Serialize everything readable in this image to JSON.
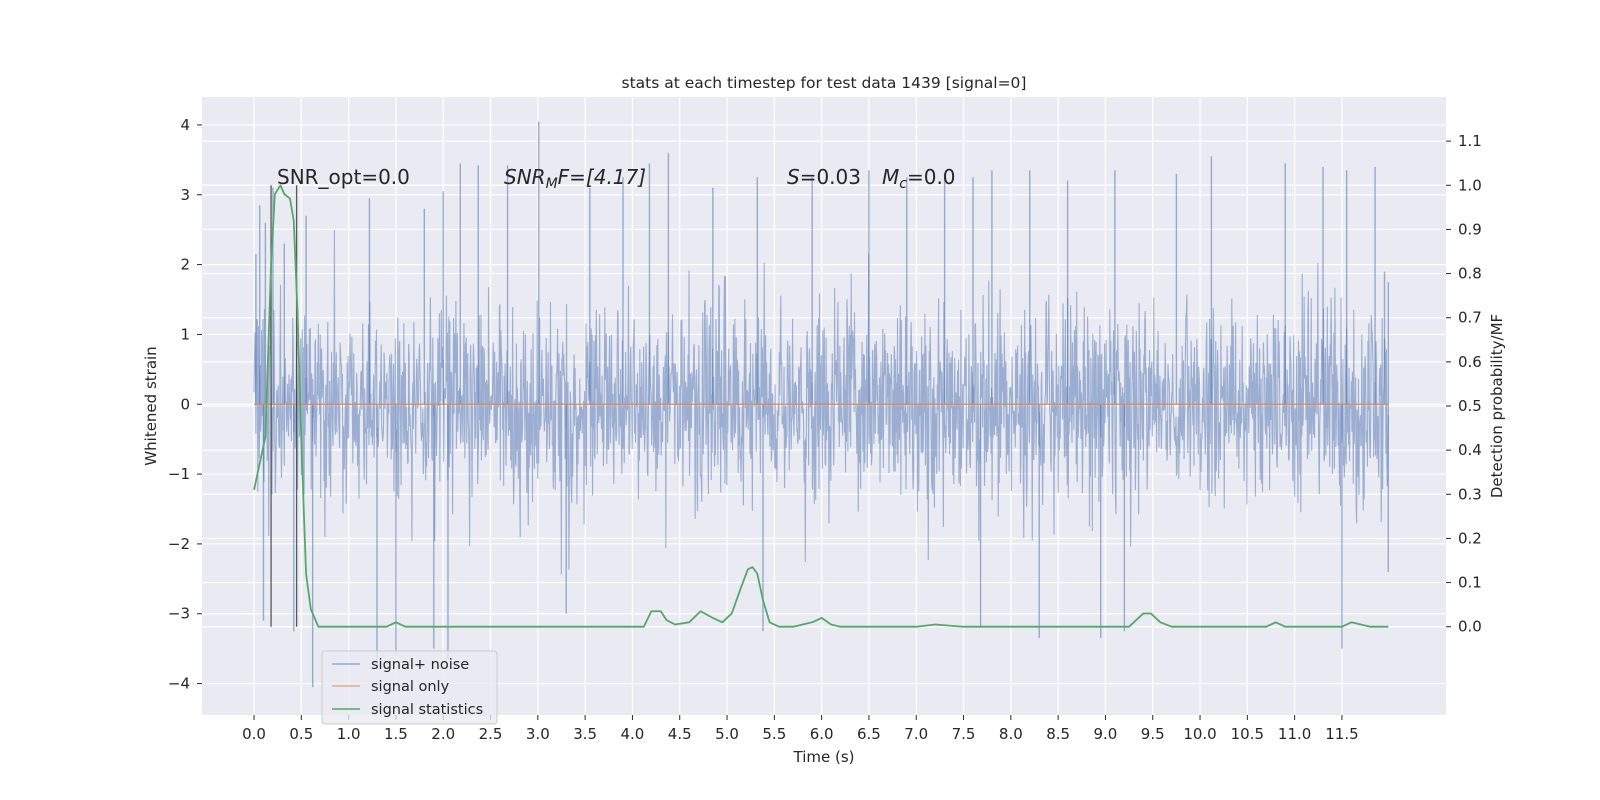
{
  "chart_data": {
    "type": "line",
    "title": "stats at each timestep for test data 1439 [signal=0]",
    "xlabel": "Time (s)",
    "ylabel": "Whitened strain",
    "y2label": "Detection probability/MF",
    "xlim": [
      -0.55,
      12.6
    ],
    "ylim": [
      -4.45,
      4.4
    ],
    "y2lim": [
      -0.2,
      1.2
    ],
    "x_ticks": [
      0.0,
      0.5,
      1.0,
      1.5,
      2.0,
      2.5,
      3.0,
      3.5,
      4.0,
      4.5,
      5.0,
      5.5,
      6.0,
      6.5,
      7.0,
      7.5,
      8.0,
      8.5,
      9.0,
      9.5,
      10.0,
      10.5,
      11.0,
      11.5
    ],
    "x_tick_labels": [
      "0.0",
      "0.5",
      "1.0",
      "1.5",
      "2.0",
      "2.5",
      "3.0",
      "3.5",
      "4.0",
      "4.5",
      "5.0",
      "5.5",
      "6.0",
      "6.5",
      "7.0",
      "7.5",
      "8.0",
      "8.5",
      "9.0",
      "9.5",
      "10.0",
      "10.5",
      "11.0",
      "11.5"
    ],
    "y_ticks": [
      -4,
      -3,
      -2,
      -1,
      0,
      1,
      2,
      3,
      4
    ],
    "y_tick_labels": [
      "−4",
      "−3",
      "−2",
      "−1",
      "0",
      "1",
      "2",
      "3",
      "4"
    ],
    "y2_ticks": [
      0.0,
      0.1,
      0.2,
      0.3,
      0.4,
      0.5,
      0.6,
      0.7,
      0.8,
      0.9,
      1.0,
      1.1
    ],
    "y2_tick_labels": [
      "0.0",
      "0.1",
      "0.2",
      "0.3",
      "0.4",
      "0.5",
      "0.6",
      "0.7",
      "0.8",
      "0.9",
      "1.0",
      "1.1"
    ],
    "grid": true,
    "legend_position": "lower-left",
    "legend": [
      {
        "label": "signal+ noise",
        "color": "#4c72b0"
      },
      {
        "label": "signal only",
        "color": "#dd8452"
      },
      {
        "label": "signal statistics",
        "color": "#55a868"
      }
    ],
    "annotations": {
      "snr_opt": "SNR_opt=0.0",
      "snr_mf_prefix": "SNR",
      "snr_mf_sub": "M",
      "snr_mf_suffix": "F=[4.17]",
      "s_prefix": "S",
      "s_value": "=0.03",
      "mc_prefix": "M",
      "mc_sub": "c",
      "mc_value": "=0.0"
    },
    "series": [
      {
        "name": "signal+ noise",
        "color": "#4c72b0",
        "x_range": [
          0.0,
          11.99
        ],
        "description_stats": {
          "typical_abs_max": 2.0,
          "peak_max": 4.05,
          "peak_min": -4.1
        },
        "spikes_high": [
          [
            0.02,
            2.15
          ],
          [
            0.06,
            2.85
          ],
          [
            0.12,
            2.6
          ],
          [
            0.2,
            3.1
          ],
          [
            0.32,
            2.3
          ],
          [
            0.55,
            2.7
          ],
          [
            1.22,
            2.95
          ],
          [
            1.8,
            2.8
          ],
          [
            2.0,
            3.05
          ],
          [
            2.18,
            3.45
          ],
          [
            2.37,
            3.42
          ],
          [
            2.68,
            3.42
          ],
          [
            3.01,
            4.05
          ],
          [
            3.55,
            3.1
          ],
          [
            3.9,
            3.25
          ],
          [
            4.18,
            3.45
          ],
          [
            4.38,
            3.6
          ],
          [
            4.85,
            3.1
          ],
          [
            5.32,
            3.25
          ],
          [
            5.9,
            3.25
          ],
          [
            6.5,
            3.35
          ],
          [
            6.9,
            3.25
          ],
          [
            7.3,
            3.3
          ],
          [
            7.6,
            3.25
          ],
          [
            7.8,
            3.35
          ],
          [
            8.2,
            3.35
          ],
          [
            8.6,
            3.2
          ],
          [
            9.1,
            3.35
          ],
          [
            9.75,
            3.3
          ],
          [
            10.12,
            3.55
          ],
          [
            10.9,
            3.45
          ],
          [
            11.3,
            3.4
          ],
          [
            11.55,
            3.35
          ],
          [
            11.85,
            3.4
          ],
          [
            11.95,
            1.9
          ],
          [
            11.99,
            1.75
          ]
        ],
        "spikes_low": [
          [
            0.1,
            -3.1
          ],
          [
            0.42,
            -3.25
          ],
          [
            0.62,
            -4.05
          ],
          [
            1.3,
            -3.75
          ],
          [
            1.5,
            -3.6
          ],
          [
            1.9,
            -3.5
          ],
          [
            2.05,
            -3.65
          ],
          [
            3.3,
            -3.0
          ],
          [
            5.38,
            -3.25
          ],
          [
            7.68,
            -3.2
          ],
          [
            8.3,
            -3.35
          ],
          [
            8.95,
            -3.35
          ],
          [
            9.2,
            -3.25
          ],
          [
            11.5,
            -3.5
          ],
          [
            11.99,
            -2.4
          ]
        ]
      },
      {
        "name": "signal only",
        "color": "#dd8452",
        "x": [
          0.0,
          11.99
        ],
        "y": [
          0.0,
          0.0
        ]
      },
      {
        "name": "signal statistics",
        "axis": "right",
        "color": "#55a868",
        "x": [
          0.0,
          0.12,
          0.18,
          0.22,
          0.28,
          0.32,
          0.38,
          0.42,
          0.46,
          0.5,
          0.55,
          0.6,
          0.68,
          1.0,
          1.4,
          1.5,
          1.6,
          2.0,
          2.5,
          3.0,
          3.5,
          4.0,
          4.12,
          4.2,
          4.3,
          4.36,
          4.45,
          4.6,
          4.72,
          4.85,
          4.95,
          5.05,
          5.15,
          5.22,
          5.27,
          5.32,
          5.38,
          5.45,
          5.55,
          5.7,
          5.9,
          6.0,
          6.1,
          6.2,
          6.5,
          7.0,
          7.2,
          7.5,
          8.0,
          8.5,
          9.0,
          9.25,
          9.4,
          9.48,
          9.58,
          9.7,
          10.0,
          10.5,
          10.7,
          10.8,
          10.9,
          11.0,
          11.5,
          11.6,
          11.8,
          11.99
        ],
        "y": [
          0.31,
          0.43,
          0.82,
          0.98,
          1.0,
          0.98,
          0.97,
          0.92,
          0.71,
          0.42,
          0.12,
          0.04,
          0.0,
          0.0,
          0.0,
          0.01,
          0.0,
          0.0,
          0.0,
          0.0,
          0.0,
          0.0,
          0.0,
          0.035,
          0.035,
          0.015,
          0.005,
          0.01,
          0.035,
          0.02,
          0.01,
          0.03,
          0.09,
          0.13,
          0.135,
          0.12,
          0.06,
          0.01,
          0.0,
          0.0,
          0.01,
          0.02,
          0.005,
          0.0,
          0.0,
          0.0,
          0.005,
          0.0,
          0.0,
          0.0,
          0.0,
          0.0,
          0.03,
          0.03,
          0.01,
          0.0,
          0.0,
          0.0,
          0.0,
          0.01,
          0.0,
          0.0,
          0.0,
          0.01,
          0.0,
          0.0
        ]
      }
    ],
    "vertical_lines": [
      0.18,
      0.45
    ]
  }
}
